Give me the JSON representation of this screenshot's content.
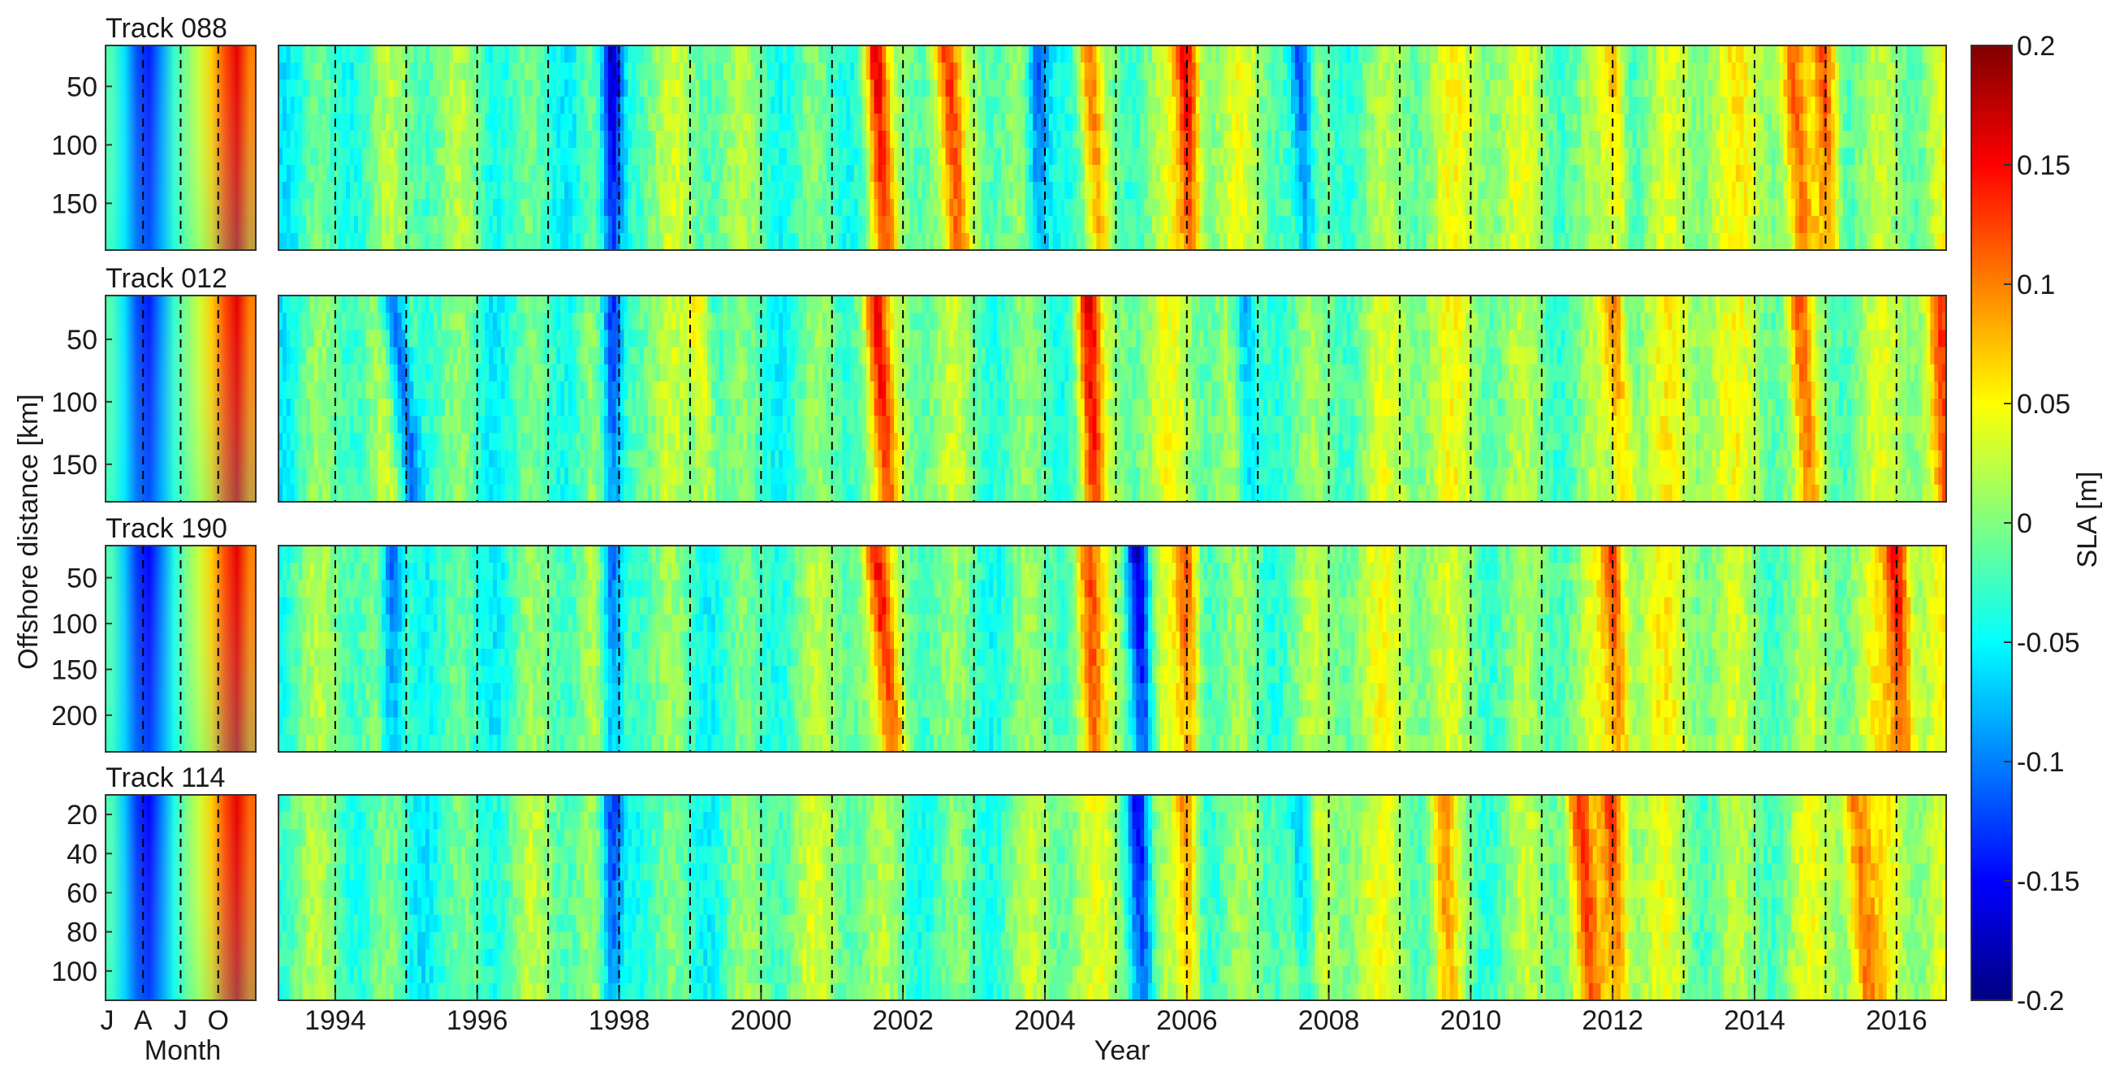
{
  "chart_data": {
    "type": "heatmap",
    "description_units": "Sea level anomaly Hovmoller diagrams",
    "colorbar": {
      "label": "SLA [m]",
      "min": -0.2,
      "max": 0.2,
      "ticks": [
        "0.2",
        "0.15",
        "0.1",
        "0.05",
        "0",
        "-0.05",
        "-0.1",
        "-0.15",
        "-0.2"
      ],
      "colormap": "jet"
    },
    "shared": {
      "ylabel": "Offshore distance [km]",
      "left_xlabel": "Month",
      "right_xlabel": "Year",
      "month_ticks": [
        "J",
        "A",
        "J",
        "O"
      ],
      "month_range": [
        0,
        12
      ],
      "year_ticks": [
        "1994",
        "1996",
        "1998",
        "2000",
        "2002",
        "2004",
        "2006",
        "2008",
        "2010",
        "2012",
        "2014",
        "2016"
      ],
      "year_range": [
        1993.2,
        2016.7
      ],
      "year_dashed_lines": [
        1994,
        1995,
        1996,
        1997,
        1998,
        1999,
        2000,
        2001,
        2002,
        2003,
        2004,
        2005,
        2006,
        2007,
        2008,
        2009,
        2010,
        2011,
        2012,
        2013,
        2014,
        2015,
        2016
      ],
      "month_dashed_lines": [
        3,
        6,
        9
      ]
    },
    "panels": [
      {
        "title": "Track 088",
        "ylim": [
          15,
          190
        ],
        "yticks": [
          "50",
          "100",
          "150"
        ],
        "ytick_values": [
          50,
          100,
          150
        ],
        "climatology": [
          -0.02,
          -0.06,
          -0.12,
          -0.14,
          -0.09,
          -0.03,
          0.0,
          0.03,
          0.07,
          0.12,
          0.16,
          0.1
        ],
        "anomaly_events": [
          {
            "year": 1997.9,
            "value": -0.18,
            "shift": 0.0
          },
          {
            "year": 2001.6,
            "value": 0.15,
            "shift": 0.15
          },
          {
            "year": 2002.6,
            "value": 0.1,
            "shift": 0.2
          },
          {
            "year": 2003.9,
            "value": -0.12,
            "shift": 0.0
          },
          {
            "year": 2004.6,
            "value": 0.1,
            "shift": 0.2
          },
          {
            "year": 2006.0,
            "value": 0.14,
            "shift": 0.05
          },
          {
            "year": 2007.6,
            "value": -0.13,
            "shift": 0.1
          },
          {
            "year": 2012.0,
            "value": 0.08,
            "shift": 0.1
          },
          {
            "year": 2014.5,
            "value": 0.09,
            "shift": 0.2
          },
          {
            "year": 2015.0,
            "value": 0.12,
            "shift": 0.05
          }
        ]
      },
      {
        "title": "Track 012",
        "ylim": [
          15,
          180
        ],
        "yticks": [
          "50",
          "100",
          "150"
        ],
        "ytick_values": [
          50,
          100,
          150
        ],
        "climatology": [
          -0.02,
          -0.06,
          -0.12,
          -0.14,
          -0.09,
          -0.03,
          0.0,
          0.03,
          0.07,
          0.12,
          0.16,
          0.1
        ],
        "anomaly_events": [
          {
            "year": 1994.8,
            "value": -0.13,
            "shift": 0.3
          },
          {
            "year": 1997.9,
            "value": -0.15,
            "shift": 0.0
          },
          {
            "year": 1999.1,
            "value": 0.08,
            "shift": 0.15
          },
          {
            "year": 2001.6,
            "value": 0.13,
            "shift": 0.2
          },
          {
            "year": 2004.6,
            "value": 0.16,
            "shift": 0.1
          },
          {
            "year": 2006.8,
            "value": -0.1,
            "shift": 0.1
          },
          {
            "year": 2012.0,
            "value": 0.1,
            "shift": 0.2
          },
          {
            "year": 2014.6,
            "value": 0.1,
            "shift": 0.2
          },
          {
            "year": 2016.6,
            "value": 0.08,
            "shift": 0.1
          }
        ]
      },
      {
        "title": "Track 190",
        "ylim": [
          15,
          240
        ],
        "yticks": [
          "50",
          "100",
          "150",
          "200"
        ],
        "ytick_values": [
          50,
          100,
          150,
          200
        ],
        "climatology": [
          -0.02,
          -0.07,
          -0.13,
          -0.15,
          -0.1,
          -0.04,
          0.0,
          0.03,
          0.07,
          0.12,
          0.16,
          0.1
        ],
        "anomaly_events": [
          {
            "year": 1994.8,
            "value": -0.12,
            "shift": 0.0
          },
          {
            "year": 1997.9,
            "value": -0.13,
            "shift": 0.0
          },
          {
            "year": 2001.6,
            "value": 0.12,
            "shift": 0.3
          },
          {
            "year": 2004.6,
            "value": 0.1,
            "shift": 0.1
          },
          {
            "year": 2005.3,
            "value": -0.17,
            "shift": 0.1
          },
          {
            "year": 2006.0,
            "value": 0.12,
            "shift": 0.05
          },
          {
            "year": 2012.0,
            "value": 0.11,
            "shift": 0.1
          },
          {
            "year": 2016.0,
            "value": 0.12,
            "shift": 0.1
          }
        ]
      },
      {
        "title": "Track 114",
        "ylim": [
          10,
          115
        ],
        "yticks": [
          "20",
          "40",
          "60",
          "80",
          "100"
        ],
        "ytick_values": [
          20,
          40,
          60,
          80,
          100
        ],
        "climatology": [
          -0.02,
          -0.07,
          -0.13,
          -0.15,
          -0.1,
          -0.04,
          0.0,
          0.03,
          0.07,
          0.12,
          0.16,
          0.11
        ],
        "anomaly_events": [
          {
            "year": 1997.9,
            "value": -0.14,
            "shift": 0.0
          },
          {
            "year": 2005.3,
            "value": -0.14,
            "shift": 0.1
          },
          {
            "year": 2006.0,
            "value": 0.11,
            "shift": 0.05
          },
          {
            "year": 2007.6,
            "value": -0.11,
            "shift": 0.1
          },
          {
            "year": 2009.6,
            "value": 0.09,
            "shift": 0.1
          },
          {
            "year": 2011.5,
            "value": 0.1,
            "shift": 0.2
          },
          {
            "year": 2012.0,
            "value": 0.1,
            "shift": 0.1
          },
          {
            "year": 2015.4,
            "value": 0.08,
            "shift": 0.2
          }
        ]
      }
    ]
  }
}
